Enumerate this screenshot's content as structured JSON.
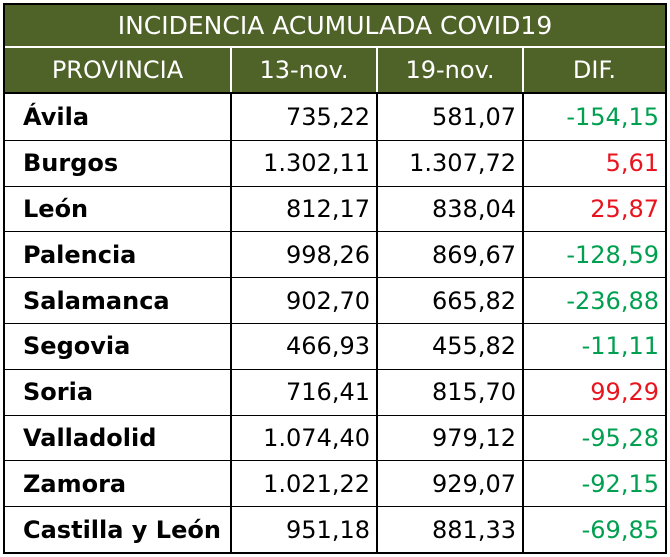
{
  "title": "INCIDENCIA ACUMULADA COVID19",
  "headers": [
    "PROVINCIA",
    "13-nov.",
    "19-nov.",
    "DIF."
  ],
  "rows": [
    {
      "provincia": "Ávila",
      "nov13": "735,22",
      "nov19": "581,07",
      "dif": "-154,15",
      "trend": "neg"
    },
    {
      "provincia": "Burgos",
      "nov13": "1.302,11",
      "nov19": "1.307,72",
      "dif": "5,61",
      "trend": "pos"
    },
    {
      "provincia": "León",
      "nov13": "812,17",
      "nov19": "838,04",
      "dif": "25,87",
      "trend": "pos"
    },
    {
      "provincia": "Palencia",
      "nov13": "998,26",
      "nov19": "869,67",
      "dif": "-128,59",
      "trend": "neg"
    },
    {
      "provincia": "Salamanca",
      "nov13": "902,70",
      "nov19": "665,82",
      "dif": "-236,88",
      "trend": "neg"
    },
    {
      "provincia": "Segovia",
      "nov13": "466,93",
      "nov19": "455,82",
      "dif": "-11,11",
      "trend": "neg"
    },
    {
      "provincia": "Soria",
      "nov13": "716,41",
      "nov19": "815,70",
      "dif": "99,29",
      "trend": "pos"
    },
    {
      "provincia": "Valladolid",
      "nov13": "1.074,40",
      "nov19": "979,12",
      "dif": "-95,28",
      "trend": "neg"
    },
    {
      "provincia": "Zamora",
      "nov13": "1.021,22",
      "nov19": "929,07",
      "dif": "-92,15",
      "trend": "neg"
    },
    {
      "provincia": "Castilla y León",
      "nov13": "951,18",
      "nov19": "881,33",
      "dif": "-69,85",
      "trend": "neg"
    }
  ],
  "colors": {
    "header_bg": "#4f6228",
    "negative": "#00a050",
    "positive": "#e8141e"
  }
}
